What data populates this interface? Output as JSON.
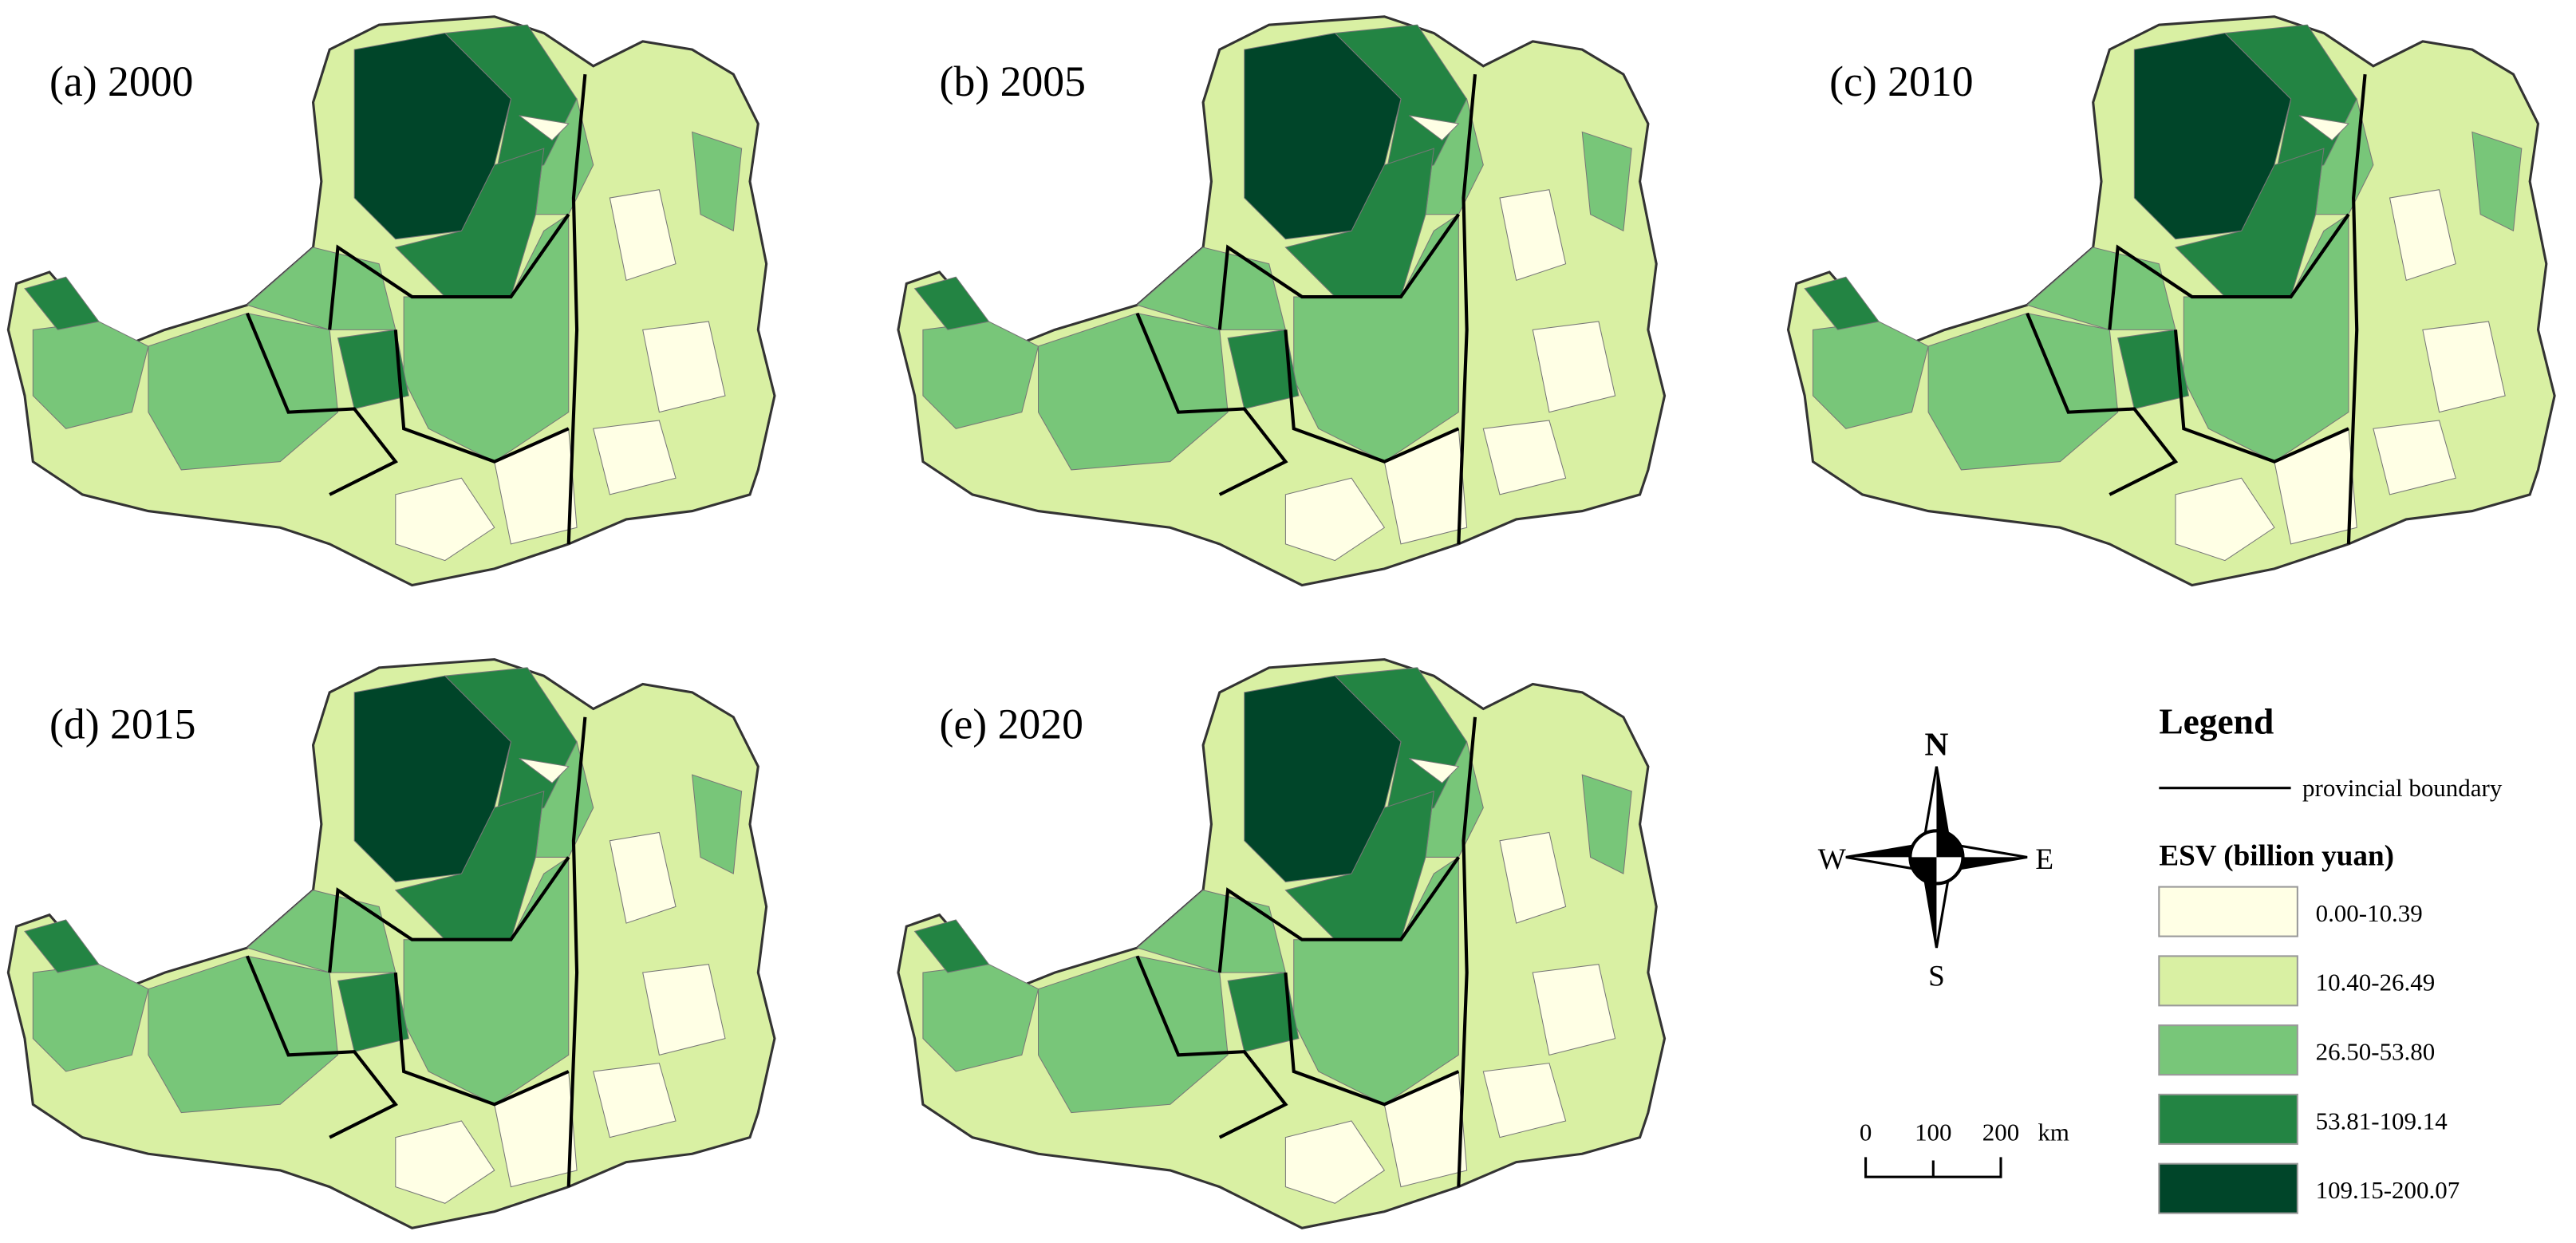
{
  "panels": [
    {
      "label": "(a) 2000"
    },
    {
      "label": "(b) 2005"
    },
    {
      "label": "(c) 2010"
    },
    {
      "label": "(d) 2015"
    },
    {
      "label": "(e) 2020"
    }
  ],
  "legend": {
    "title": "Legend",
    "boundary_label": "provincial boundary",
    "esv_title": "ESV (billion yuan)",
    "classes": [
      {
        "label": "0.00-10.39",
        "color": "#ffffe5"
      },
      {
        "label": "10.40-26.49",
        "color": "#d9f0a3"
      },
      {
        "label": "26.50-53.80",
        "color": "#78c679"
      },
      {
        "label": "53.81-109.14",
        "color": "#238443"
      },
      {
        "label": "109.15-200.07",
        "color": "#004529"
      }
    ]
  },
  "compass": {
    "north": "N",
    "south": "S",
    "east": "E",
    "west": "W"
  },
  "scale_bar": {
    "labels": [
      "0",
      "100",
      "200",
      "km"
    ]
  }
}
